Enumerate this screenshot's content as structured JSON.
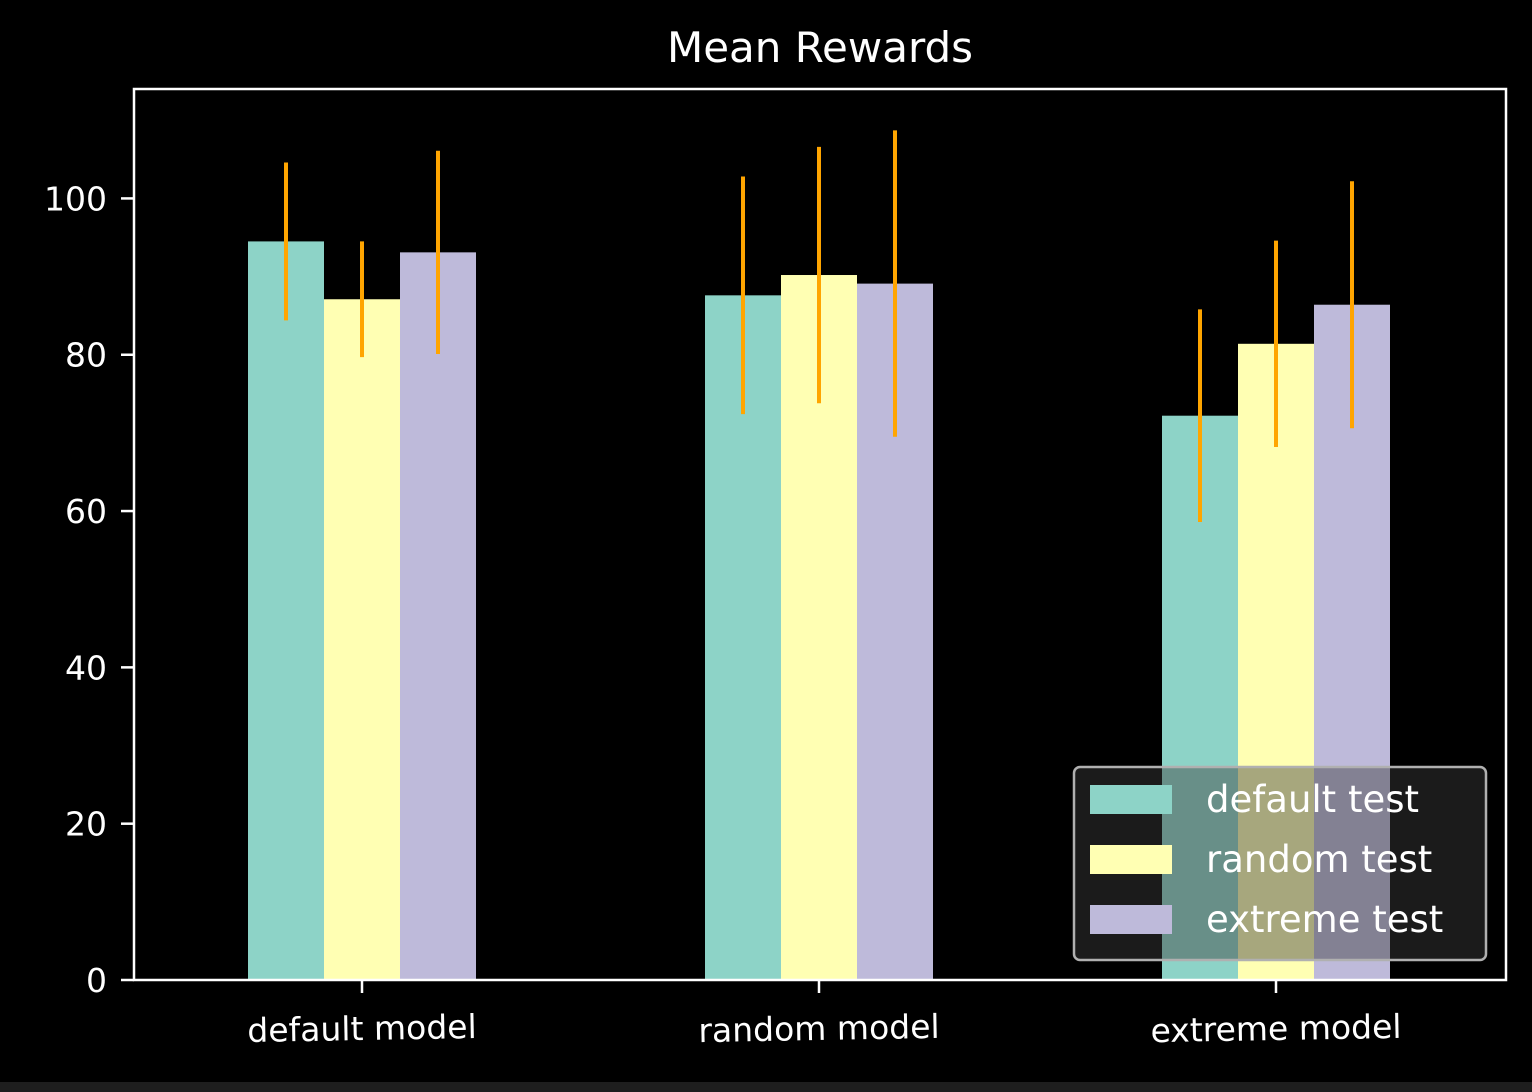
{
  "chart_data": {
    "type": "bar",
    "title": "Mean Rewards",
    "xlabel": "",
    "ylabel": "",
    "categories": [
      "default model",
      "random model",
      "extreme model"
    ],
    "series": [
      {
        "name": "default test",
        "color": "#8dd3c7",
        "values": [
          94.5,
          87.6,
          72.2
        ],
        "errors": [
          10.1,
          15.2,
          13.6
        ]
      },
      {
        "name": "random test",
        "color": "#ffffb3",
        "values": [
          87.1,
          90.2,
          81.4
        ],
        "errors": [
          7.4,
          16.4,
          13.2
        ]
      },
      {
        "name": "extreme test",
        "color": "#bebada",
        "values": [
          93.1,
          89.1,
          86.4
        ],
        "errors": [
          13.0,
          19.6,
          15.8
        ]
      }
    ],
    "error_bar_color": "#ffa500",
    "ylim": [
      0,
      114
    ],
    "yticks": [
      0,
      20,
      40,
      60,
      80,
      100
    ],
    "grid": false,
    "legend_position": "lower right",
    "background": "#000000",
    "axes_color": "#ffffff"
  }
}
